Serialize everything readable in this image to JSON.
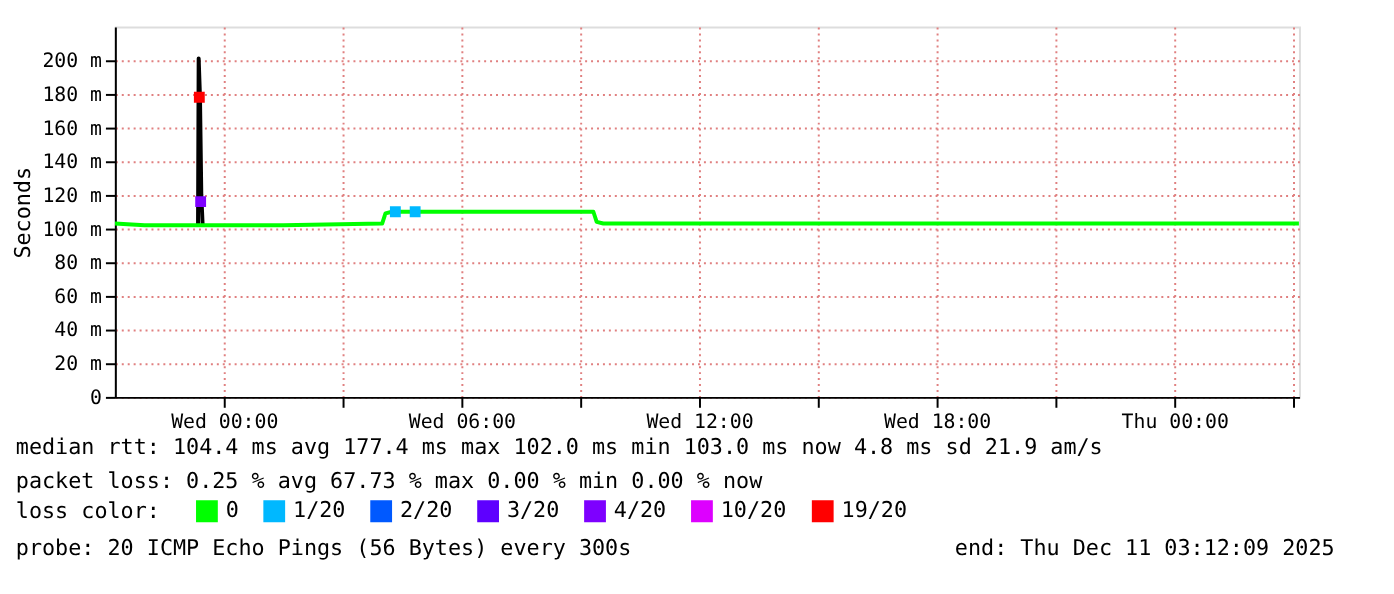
{
  "chart_data": {
    "type": "line",
    "ylabel": "Seconds",
    "legend_title": "loss color:",
    "legend": "bottom",
    "grid": true,
    "marker": "none",
    "xlim": [
      "2025-12-09T21:15",
      "2025-12-11T03:09"
    ],
    "xticks": [
      {
        "value": "2025-12-10T00:00",
        "label": "Wed 00:00"
      },
      {
        "value": "2025-12-10T03:00",
        "label": null
      },
      {
        "value": "2025-12-10T06:00",
        "label": "Wed 06:00"
      },
      {
        "value": "2025-12-10T09:00",
        "label": null
      },
      {
        "value": "2025-12-10T12:00",
        "label": "Wed 12:00"
      },
      {
        "value": "2025-12-10T15:00",
        "label": null
      },
      {
        "value": "2025-12-10T18:00",
        "label": "Wed 18:00"
      },
      {
        "value": "2025-12-10T21:00",
        "label": null
      },
      {
        "value": "2025-12-11T00:00",
        "label": "Thu 00:00"
      },
      {
        "value": "2025-12-11T03:00",
        "label": null
      }
    ],
    "ylim": [
      0,
      220
    ],
    "yticks": [
      0,
      {
        "value": 20,
        "label": "20 m"
      },
      {
        "value": 40,
        "label": "40 m"
      },
      {
        "value": 60,
        "label": "60 m"
      },
      {
        "value": 80,
        "label": "80 m"
      },
      {
        "value": 100,
        "label": "100 m"
      },
      {
        "value": 120,
        "label": "120 m"
      },
      {
        "value": 140,
        "label": "140 m"
      },
      {
        "value": 160,
        "label": "160 m"
      },
      {
        "value": 180,
        "label": "180 m"
      },
      {
        "value": 200,
        "label": "200 m"
      }
    ],
    "series": [
      {
        "color": "#000000",
        "x": [
          "2025-12-09T23:21",
          "2025-12-09T23:22",
          "2025-12-09T23:24",
          "2025-12-09T23:26",
          "2025-12-09T23:28"
        ],
        "values": [
          102,
          201,
          178,
          120,
          102
        ]
      },
      {
        "name": "0",
        "color": "#00ff00",
        "x": [
          "2025-12-09T21:15",
          "2025-12-09T22:00",
          "2025-12-09T23:20",
          "2025-12-09T23:21",
          "2025-12-09T23:28",
          "2025-12-09T23:30",
          "2025-12-10T01:30",
          "2025-12-10T04:00",
          "2025-12-10T04:05",
          "2025-12-10T04:15",
          "2025-12-10T09:20",
          "2025-12-10T09:25",
          "2025-12-10T09:35",
          "2025-12-11T03:09"
        ],
        "values": [
          103,
          102,
          102,
          102,
          102,
          102,
          102,
          103,
          109,
          110,
          110,
          104,
          103,
          103
        ]
      },
      {
        "name": "1/20",
        "type": "scatter",
        "marker": "square",
        "color": "#00b8ff",
        "x": [
          "2025-12-10T04:20",
          "2025-12-10T04:50"
        ],
        "values": [
          110,
          110
        ]
      },
      {
        "name": "2/20",
        "type": "scatter",
        "marker": "square",
        "color": "#0059ff"
      },
      {
        "name": "3/20",
        "type": "scatter",
        "marker": "square",
        "color": "#5e00ff"
      },
      {
        "name": "4/20",
        "type": "scatter",
        "marker": "square",
        "color": "#7e00ff",
        "x": [
          "2025-12-09T23:25"
        ],
        "values": [
          116
        ]
      },
      {
        "name": "10/20",
        "type": "scatter",
        "marker": "square",
        "color": "#dd00ff"
      },
      {
        "name": "19/20",
        "type": "scatter",
        "marker": "square",
        "color": "#ff0000",
        "x": [
          "2025-12-09T23:23"
        ],
        "values": [
          178
        ]
      }
    ],
    "annotations": [
      "median rtt:  104.4 ms avg  177.4 ms max  102.0 ms min  103.0 ms now  4.8 ms sd  21.9   am/s",
      "packet loss: 0.25 % avg  67.73 % max  0.00 % min  0.00 % now",
      "probe:       20 ICMP Echo Pings (56 Bytes) every 300s",
      "end: Thu Dec 11 03:12:09 2025"
    ]
  }
}
